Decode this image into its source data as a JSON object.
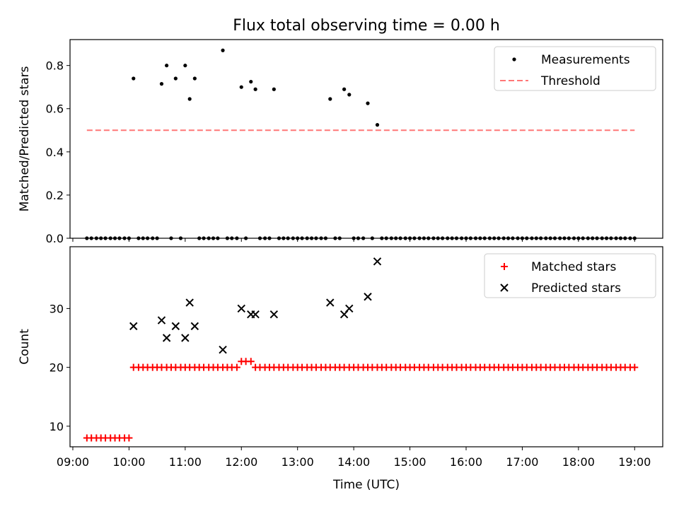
{
  "figure_title": "Flux total observing time = 0.00 h",
  "chart_data": [
    {
      "type": "scatter",
      "title": "Flux total observing time = 0.00 h",
      "xlabel": "",
      "ylabel": "Matched/Predicted stars",
      "x_unit": "hours (UTC)",
      "xlim": [
        8.95,
        19.5
      ],
      "ylim": [
        0,
        0.92
      ],
      "yticks": [
        "0.0",
        "0.2",
        "0.4",
        "0.6",
        "0.8"
      ],
      "grid": false,
      "legend_position": "upper right",
      "series": [
        {
          "name": "Measurements",
          "marker": "dot",
          "color": "#000000",
          "points": [
            [
              9.25,
              0
            ],
            [
              9.33,
              0
            ],
            [
              9.42,
              0
            ],
            [
              9.5,
              0
            ],
            [
              9.58,
              0
            ],
            [
              9.67,
              0
            ],
            [
              9.75,
              0
            ],
            [
              9.83,
              0
            ],
            [
              9.92,
              0
            ],
            [
              10.0,
              0
            ],
            [
              10.08,
              0.74
            ],
            [
              10.17,
              0
            ],
            [
              10.25,
              0
            ],
            [
              10.33,
              0
            ],
            [
              10.42,
              0
            ],
            [
              10.5,
              0
            ],
            [
              10.58,
              0.715
            ],
            [
              10.67,
              0.8
            ],
            [
              10.75,
              0
            ],
            [
              10.83,
              0.74
            ],
            [
              10.92,
              0
            ],
            [
              11.0,
              0.8
            ],
            [
              11.08,
              0.645
            ],
            [
              11.17,
              0.74
            ],
            [
              11.25,
              0
            ],
            [
              11.33,
              0
            ],
            [
              11.42,
              0
            ],
            [
              11.5,
              0
            ],
            [
              11.58,
              0
            ],
            [
              11.67,
              0.87
            ],
            [
              11.75,
              0
            ],
            [
              11.83,
              0
            ],
            [
              11.92,
              0
            ],
            [
              12.0,
              0.7
            ],
            [
              12.08,
              0
            ],
            [
              12.17,
              0.725
            ],
            [
              12.25,
              0.69
            ],
            [
              12.33,
              0
            ],
            [
              12.42,
              0
            ],
            [
              12.5,
              0
            ],
            [
              12.58,
              0.69
            ],
            [
              12.67,
              0
            ],
            [
              12.75,
              0
            ],
            [
              12.83,
              0
            ],
            [
              12.92,
              0
            ],
            [
              13.0,
              0
            ],
            [
              13.08,
              0
            ],
            [
              13.17,
              0
            ],
            [
              13.25,
              0
            ],
            [
              13.33,
              0
            ],
            [
              13.42,
              0
            ],
            [
              13.5,
              0
            ],
            [
              13.58,
              0.645
            ],
            [
              13.67,
              0
            ],
            [
              13.75,
              0
            ],
            [
              13.83,
              0.69
            ],
            [
              13.92,
              0.665
            ],
            [
              14.0,
              0
            ],
            [
              14.08,
              0
            ],
            [
              14.17,
              0
            ],
            [
              14.25,
              0.625
            ],
            [
              14.33,
              0
            ],
            [
              14.42,
              0.525
            ],
            [
              14.5,
              0
            ],
            [
              14.58,
              0
            ],
            [
              14.67,
              0
            ],
            [
              14.75,
              0
            ],
            [
              14.83,
              0
            ],
            [
              14.92,
              0
            ],
            [
              15.0,
              0
            ],
            [
              15.08,
              0
            ],
            [
              15.17,
              0
            ],
            [
              15.25,
              0
            ],
            [
              15.33,
              0
            ],
            [
              15.42,
              0
            ],
            [
              15.5,
              0
            ],
            [
              15.58,
              0
            ],
            [
              15.67,
              0
            ],
            [
              15.75,
              0
            ],
            [
              15.83,
              0
            ],
            [
              15.92,
              0
            ],
            [
              16.0,
              0
            ],
            [
              16.08,
              0
            ],
            [
              16.17,
              0
            ],
            [
              16.25,
              0
            ],
            [
              16.33,
              0
            ],
            [
              16.42,
              0
            ],
            [
              16.5,
              0
            ],
            [
              16.58,
              0
            ],
            [
              16.67,
              0
            ],
            [
              16.75,
              0
            ],
            [
              16.83,
              0
            ],
            [
              16.92,
              0
            ],
            [
              17.0,
              0
            ],
            [
              17.08,
              0
            ],
            [
              17.17,
              0
            ],
            [
              17.25,
              0
            ],
            [
              17.33,
              0
            ],
            [
              17.42,
              0
            ],
            [
              17.5,
              0
            ],
            [
              17.58,
              0
            ],
            [
              17.67,
              0
            ],
            [
              17.75,
              0
            ],
            [
              17.83,
              0
            ],
            [
              17.92,
              0
            ],
            [
              18.0,
              0
            ],
            [
              18.08,
              0
            ],
            [
              18.17,
              0
            ],
            [
              18.25,
              0
            ],
            [
              18.33,
              0
            ],
            [
              18.42,
              0
            ],
            [
              18.5,
              0
            ],
            [
              18.58,
              0
            ],
            [
              18.67,
              0
            ],
            [
              18.75,
              0
            ],
            [
              18.83,
              0
            ],
            [
              18.92,
              0
            ],
            [
              19.0,
              0
            ]
          ]
        },
        {
          "name": "Threshold",
          "marker": "dashed-line",
          "color": "#ff7777",
          "points": [
            [
              9.25,
              0.5
            ],
            [
              19.0,
              0.5
            ]
          ]
        }
      ]
    },
    {
      "type": "scatter",
      "title": "",
      "xlabel": "Time (UTC)",
      "ylabel": "Count",
      "x_unit": "hours (UTC)",
      "xlim": [
        8.95,
        19.5
      ],
      "ylim": [
        6.5,
        40.5
      ],
      "yticks": [
        "10",
        "20",
        "30"
      ],
      "xticks": [
        "09:00",
        "10:00",
        "11:00",
        "12:00",
        "13:00",
        "14:00",
        "15:00",
        "16:00",
        "17:00",
        "18:00",
        "19:00"
      ],
      "grid": false,
      "legend_position": "upper right",
      "series": [
        {
          "name": "Matched stars",
          "marker": "plus",
          "color": "#ff0000",
          "points": [
            [
              9.25,
              8
            ],
            [
              9.33,
              8
            ],
            [
              9.42,
              8
            ],
            [
              9.5,
              8
            ],
            [
              9.58,
              8
            ],
            [
              9.67,
              8
            ],
            [
              9.75,
              8
            ],
            [
              9.83,
              8
            ],
            [
              9.92,
              8
            ],
            [
              10.0,
              8
            ],
            [
              10.08,
              20
            ],
            [
              10.17,
              20
            ],
            [
              10.25,
              20
            ],
            [
              10.33,
              20
            ],
            [
              10.42,
              20
            ],
            [
              10.5,
              20
            ],
            [
              10.58,
              20
            ],
            [
              10.67,
              20
            ],
            [
              10.75,
              20
            ],
            [
              10.83,
              20
            ],
            [
              10.92,
              20
            ],
            [
              11.0,
              20
            ],
            [
              11.08,
              20
            ],
            [
              11.17,
              20
            ],
            [
              11.25,
              20
            ],
            [
              11.33,
              20
            ],
            [
              11.42,
              20
            ],
            [
              11.5,
              20
            ],
            [
              11.58,
              20
            ],
            [
              11.67,
              20
            ],
            [
              11.75,
              20
            ],
            [
              11.83,
              20
            ],
            [
              11.92,
              20
            ],
            [
              12.0,
              21
            ],
            [
              12.08,
              21
            ],
            [
              12.17,
              21
            ],
            [
              12.25,
              20
            ],
            [
              12.33,
              20
            ],
            [
              12.42,
              20
            ],
            [
              12.5,
              20
            ],
            [
              12.58,
              20
            ],
            [
              12.67,
              20
            ],
            [
              12.75,
              20
            ],
            [
              12.83,
              20
            ],
            [
              12.92,
              20
            ],
            [
              13.0,
              20
            ],
            [
              13.08,
              20
            ],
            [
              13.17,
              20
            ],
            [
              13.25,
              20
            ],
            [
              13.33,
              20
            ],
            [
              13.42,
              20
            ],
            [
              13.5,
              20
            ],
            [
              13.58,
              20
            ],
            [
              13.67,
              20
            ],
            [
              13.75,
              20
            ],
            [
              13.83,
              20
            ],
            [
              13.92,
              20
            ],
            [
              14.0,
              20
            ],
            [
              14.08,
              20
            ],
            [
              14.17,
              20
            ],
            [
              14.25,
              20
            ],
            [
              14.33,
              20
            ],
            [
              14.42,
              20
            ],
            [
              14.5,
              20
            ],
            [
              14.58,
              20
            ],
            [
              14.67,
              20
            ],
            [
              14.75,
              20
            ],
            [
              14.83,
              20
            ],
            [
              14.92,
              20
            ],
            [
              15.0,
              20
            ],
            [
              15.08,
              20
            ],
            [
              15.17,
              20
            ],
            [
              15.25,
              20
            ],
            [
              15.33,
              20
            ],
            [
              15.42,
              20
            ],
            [
              15.5,
              20
            ],
            [
              15.58,
              20
            ],
            [
              15.67,
              20
            ],
            [
              15.75,
              20
            ],
            [
              15.83,
              20
            ],
            [
              15.92,
              20
            ],
            [
              16.0,
              20
            ],
            [
              16.08,
              20
            ],
            [
              16.17,
              20
            ],
            [
              16.25,
              20
            ],
            [
              16.33,
              20
            ],
            [
              16.42,
              20
            ],
            [
              16.5,
              20
            ],
            [
              16.58,
              20
            ],
            [
              16.67,
              20
            ],
            [
              16.75,
              20
            ],
            [
              16.83,
              20
            ],
            [
              16.92,
              20
            ],
            [
              17.0,
              20
            ],
            [
              17.08,
              20
            ],
            [
              17.17,
              20
            ],
            [
              17.25,
              20
            ],
            [
              17.33,
              20
            ],
            [
              17.42,
              20
            ],
            [
              17.5,
              20
            ],
            [
              17.58,
              20
            ],
            [
              17.67,
              20
            ],
            [
              17.75,
              20
            ],
            [
              17.83,
              20
            ],
            [
              17.92,
              20
            ],
            [
              18.0,
              20
            ],
            [
              18.08,
              20
            ],
            [
              18.17,
              20
            ],
            [
              18.25,
              20
            ],
            [
              18.33,
              20
            ],
            [
              18.42,
              20
            ],
            [
              18.5,
              20
            ],
            [
              18.58,
              20
            ],
            [
              18.67,
              20
            ],
            [
              18.75,
              20
            ],
            [
              18.83,
              20
            ],
            [
              18.92,
              20
            ],
            [
              19.0,
              20
            ]
          ]
        },
        {
          "name": "Predicted stars",
          "marker": "x",
          "color": "#000000",
          "points": [
            [
              10.08,
              27
            ],
            [
              10.58,
              28
            ],
            [
              10.67,
              25
            ],
            [
              10.83,
              27
            ],
            [
              11.0,
              25
            ],
            [
              11.08,
              31
            ],
            [
              11.17,
              27
            ],
            [
              11.67,
              23
            ],
            [
              12.0,
              30
            ],
            [
              12.17,
              29
            ],
            [
              12.25,
              29
            ],
            [
              12.58,
              29
            ],
            [
              13.58,
              31
            ],
            [
              13.83,
              29
            ],
            [
              13.92,
              30
            ],
            [
              14.25,
              32
            ],
            [
              14.42,
              38
            ]
          ]
        }
      ]
    }
  ]
}
